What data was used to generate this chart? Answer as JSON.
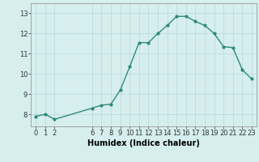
{
  "x": [
    0,
    1,
    2,
    6,
    7,
    8,
    9,
    10,
    11,
    12,
    13,
    14,
    15,
    16,
    17,
    18,
    19,
    20,
    21,
    22,
    23
  ],
  "y": [
    7.9,
    8.0,
    7.75,
    8.3,
    8.45,
    8.5,
    9.2,
    10.35,
    11.55,
    11.55,
    12.0,
    12.4,
    12.85,
    12.85,
    12.6,
    12.4,
    12.0,
    11.35,
    11.3,
    10.2,
    9.75
  ],
  "xticks": [
    0,
    1,
    2,
    6,
    7,
    8,
    9,
    10,
    11,
    12,
    13,
    14,
    15,
    16,
    17,
    18,
    19,
    20,
    21,
    22,
    23
  ],
  "yticks": [
    8,
    9,
    10,
    11,
    12,
    13
  ],
  "ylim": [
    7.4,
    13.5
  ],
  "xlim": [
    -0.5,
    23.5
  ],
  "xlabel": "Humidex (Indice chaleur)",
  "line_color": "#2e8b77",
  "bg_color": "#d6eeee",
  "grid_color": "#b8d8d8",
  "marker": "o",
  "marker_size": 2.0,
  "linewidth": 1.0,
  "xlabel_fontsize": 7,
  "tick_fontsize": 6
}
